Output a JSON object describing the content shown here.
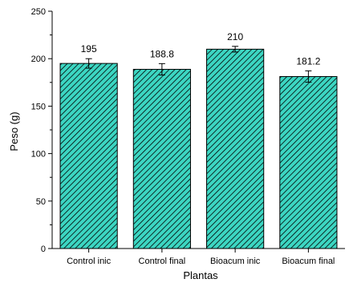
{
  "chart_data": {
    "type": "bar",
    "categories": [
      "Control inic",
      "Control final",
      "Bioacum inic",
      "Bioacum final"
    ],
    "values": [
      195,
      188.8,
      210,
      181.2
    ],
    "error": [
      5,
      6,
      3,
      6
    ],
    "data_labels": [
      "195",
      "188.8",
      "210",
      "181.2"
    ],
    "xlabel": "Plantas",
    "ylabel": "Peso (g)",
    "ylim": [
      0,
      250
    ],
    "yticks": [
      0,
      50,
      100,
      150,
      200,
      250
    ],
    "ytick_labels": [
      "0",
      "50",
      "100",
      "150",
      "200",
      "250"
    ],
    "grid": false,
    "bar_fill": "#3cd6c2",
    "bar_hatch": "diagonal",
    "bar_stroke": "#000000"
  }
}
